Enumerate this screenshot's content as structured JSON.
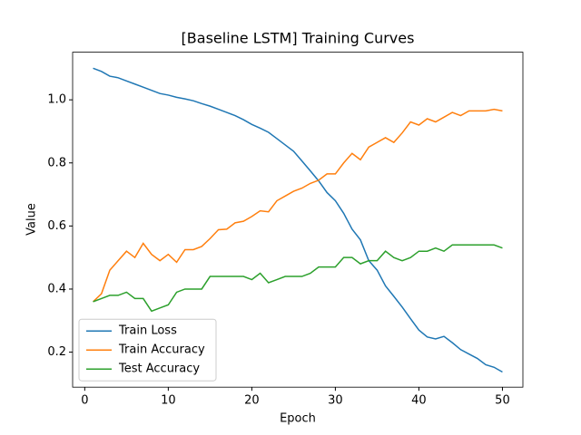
{
  "chart_data": {
    "type": "line",
    "title": "[Baseline LSTM] Training Curves",
    "xlabel": "Epoch",
    "ylabel": "Value",
    "x": [
      1,
      2,
      3,
      4,
      5,
      6,
      7,
      8,
      9,
      10,
      11,
      12,
      13,
      14,
      15,
      16,
      17,
      18,
      19,
      20,
      21,
      22,
      23,
      24,
      25,
      26,
      27,
      28,
      29,
      30,
      31,
      32,
      33,
      34,
      35,
      36,
      37,
      38,
      39,
      40,
      41,
      42,
      43,
      44,
      45,
      46,
      47,
      48,
      49,
      50
    ],
    "series": [
      {
        "name": "Train Loss",
        "color": "#1f77b4",
        "values": [
          1.1,
          1.09,
          1.075,
          1.07,
          1.06,
          1.05,
          1.04,
          1.03,
          1.02,
          1.015,
          1.008,
          1.003,
          0.997,
          0.988,
          0.98,
          0.97,
          0.96,
          0.95,
          0.937,
          0.922,
          0.91,
          0.897,
          0.877,
          0.857,
          0.837,
          0.806,
          0.775,
          0.743,
          0.706,
          0.68,
          0.64,
          0.59,
          0.556,
          0.49,
          0.46,
          0.41,
          0.377,
          0.343,
          0.306,
          0.27,
          0.248,
          0.242,
          0.25,
          0.23,
          0.208,
          0.194,
          0.18,
          0.16,
          0.152,
          0.137
        ]
      },
      {
        "name": "Train Accuracy",
        "color": "#ff7f0e",
        "values": [
          0.36,
          0.385,
          0.46,
          0.49,
          0.52,
          0.5,
          0.545,
          0.51,
          0.49,
          0.51,
          0.485,
          0.525,
          0.525,
          0.535,
          0.56,
          0.588,
          0.59,
          0.61,
          0.615,
          0.63,
          0.648,
          0.645,
          0.68,
          0.695,
          0.71,
          0.72,
          0.735,
          0.745,
          0.765,
          0.765,
          0.8,
          0.83,
          0.81,
          0.85,
          0.865,
          0.88,
          0.865,
          0.895,
          0.93,
          0.92,
          0.94,
          0.93,
          0.945,
          0.96,
          0.95,
          0.965,
          0.965,
          0.965,
          0.97,
          0.965
        ]
      },
      {
        "name": "Test Accuracy",
        "color": "#2ca02c",
        "values": [
          0.36,
          0.37,
          0.38,
          0.38,
          0.39,
          0.37,
          0.37,
          0.33,
          0.34,
          0.35,
          0.39,
          0.4,
          0.4,
          0.4,
          0.44,
          0.44,
          0.44,
          0.44,
          0.44,
          0.43,
          0.45,
          0.42,
          0.43,
          0.44,
          0.44,
          0.44,
          0.45,
          0.47,
          0.47,
          0.47,
          0.5,
          0.5,
          0.48,
          0.49,
          0.49,
          0.52,
          0.5,
          0.49,
          0.5,
          0.52,
          0.52,
          0.53,
          0.52,
          0.54,
          0.54,
          0.54,
          0.54,
          0.54,
          0.54,
          0.53
        ]
      }
    ],
    "xlim": [
      -1.45,
      52.45
    ],
    "xticks": [
      0,
      10,
      20,
      30,
      40,
      50
    ],
    "ylim": [
      0.089,
      1.151
    ],
    "yticks": [
      0.2,
      0.4,
      0.6,
      0.8,
      {
        "value": 1,
        "label": "1.0"
      }
    ],
    "grid": false,
    "legend": "lower left"
  }
}
